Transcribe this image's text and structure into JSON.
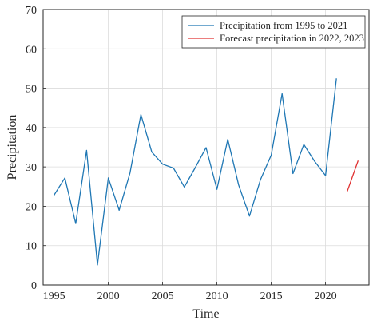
{
  "chart_data": {
    "type": "line",
    "xlabel": "Time",
    "ylabel": "Precipitation",
    "xlim": [
      1994,
      2024
    ],
    "ylim": [
      0,
      70
    ],
    "xticks": [
      1995,
      2000,
      2005,
      2010,
      2015,
      2020
    ],
    "yticks": [
      0,
      10,
      20,
      30,
      40,
      50,
      60,
      70
    ],
    "grid": true,
    "legend_position": "top-right",
    "series": [
      {
        "name": "Precipitation from 1995 to 2021",
        "color": "#1f77b4",
        "x": [
          1995,
          1996,
          1997,
          1998,
          1999,
          2000,
          2001,
          2002,
          2003,
          2004,
          2005,
          2006,
          2007,
          2008,
          2009,
          2010,
          2011,
          2012,
          2013,
          2014,
          2015,
          2016,
          2017,
          2018,
          2019,
          2020,
          2021
        ],
        "y": [
          22.8,
          27.2,
          15.6,
          34.2,
          5.1,
          27.2,
          19.0,
          28.5,
          43.3,
          33.8,
          30.7,
          29.7,
          24.9,
          29.8,
          34.9,
          24.3,
          37.0,
          25.4,
          17.5,
          26.7,
          33.0,
          48.6,
          28.3,
          35.7,
          31.4,
          27.8,
          52.5
        ]
      },
      {
        "name": "Forecast precipitation in 2022, 2023",
        "color": "#e03131",
        "x": [
          2022,
          2023
        ],
        "y": [
          23.8,
          31.6
        ]
      }
    ]
  }
}
